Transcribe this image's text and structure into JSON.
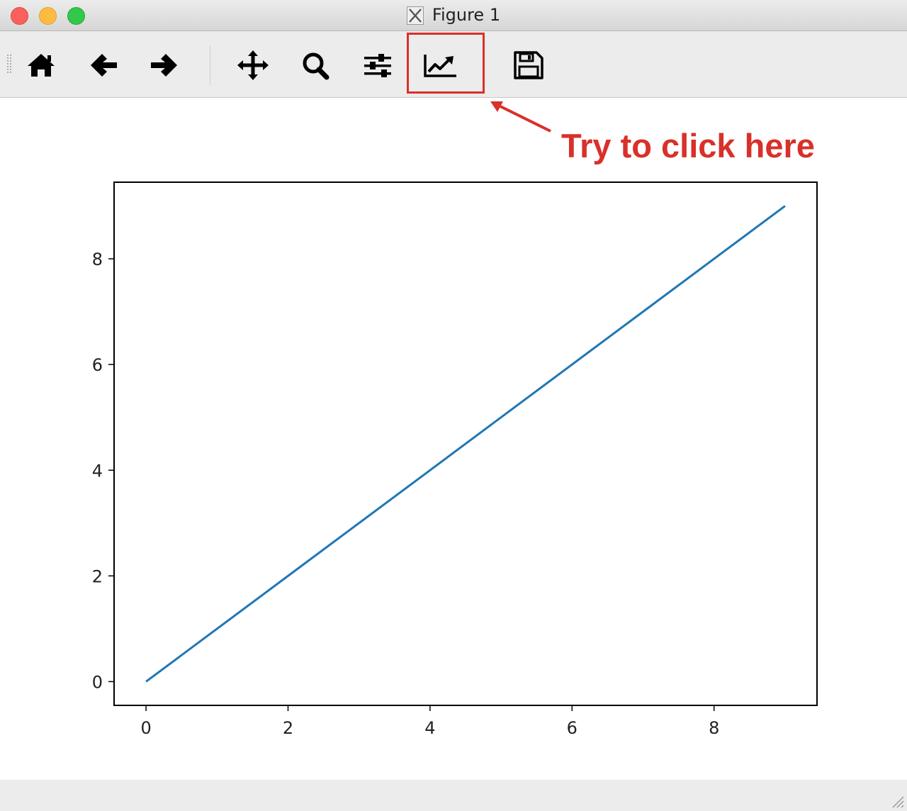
{
  "window": {
    "title": "Figure 1"
  },
  "annotation": {
    "text": "Try to click here",
    "color": "#d9302a"
  },
  "toolbar": {
    "buttons": [
      {
        "name": "home-button",
        "icon": "home-icon"
      },
      {
        "name": "back-button",
        "icon": "arrow-left-icon"
      },
      {
        "name": "forward-button",
        "icon": "arrow-right-icon"
      },
      {
        "name": "pan-button",
        "icon": "move-icon"
      },
      {
        "name": "zoom-button",
        "icon": "magnifier-icon"
      },
      {
        "name": "subplots-button",
        "icon": "sliders-icon"
      },
      {
        "name": "edit-axis-button",
        "icon": "chart-line-icon"
      },
      {
        "name": "save-button",
        "icon": "floppy-disk-icon"
      }
    ]
  },
  "chart_data": {
    "type": "line",
    "title": "",
    "xlabel": "",
    "ylabel": "",
    "xlim": [
      -0.45,
      9.45
    ],
    "ylim": [
      -0.45,
      9.45
    ],
    "xticks": [
      0,
      2,
      4,
      6,
      8
    ],
    "yticks": [
      0,
      2,
      4,
      6,
      8
    ],
    "grid": false,
    "series": [
      {
        "x": [
          0,
          1,
          2,
          3,
          4,
          5,
          6,
          7,
          8,
          9
        ],
        "values": [
          0,
          1,
          2,
          3,
          4,
          5,
          6,
          7,
          8,
          9
        ],
        "color": "#1f77b4"
      }
    ]
  }
}
